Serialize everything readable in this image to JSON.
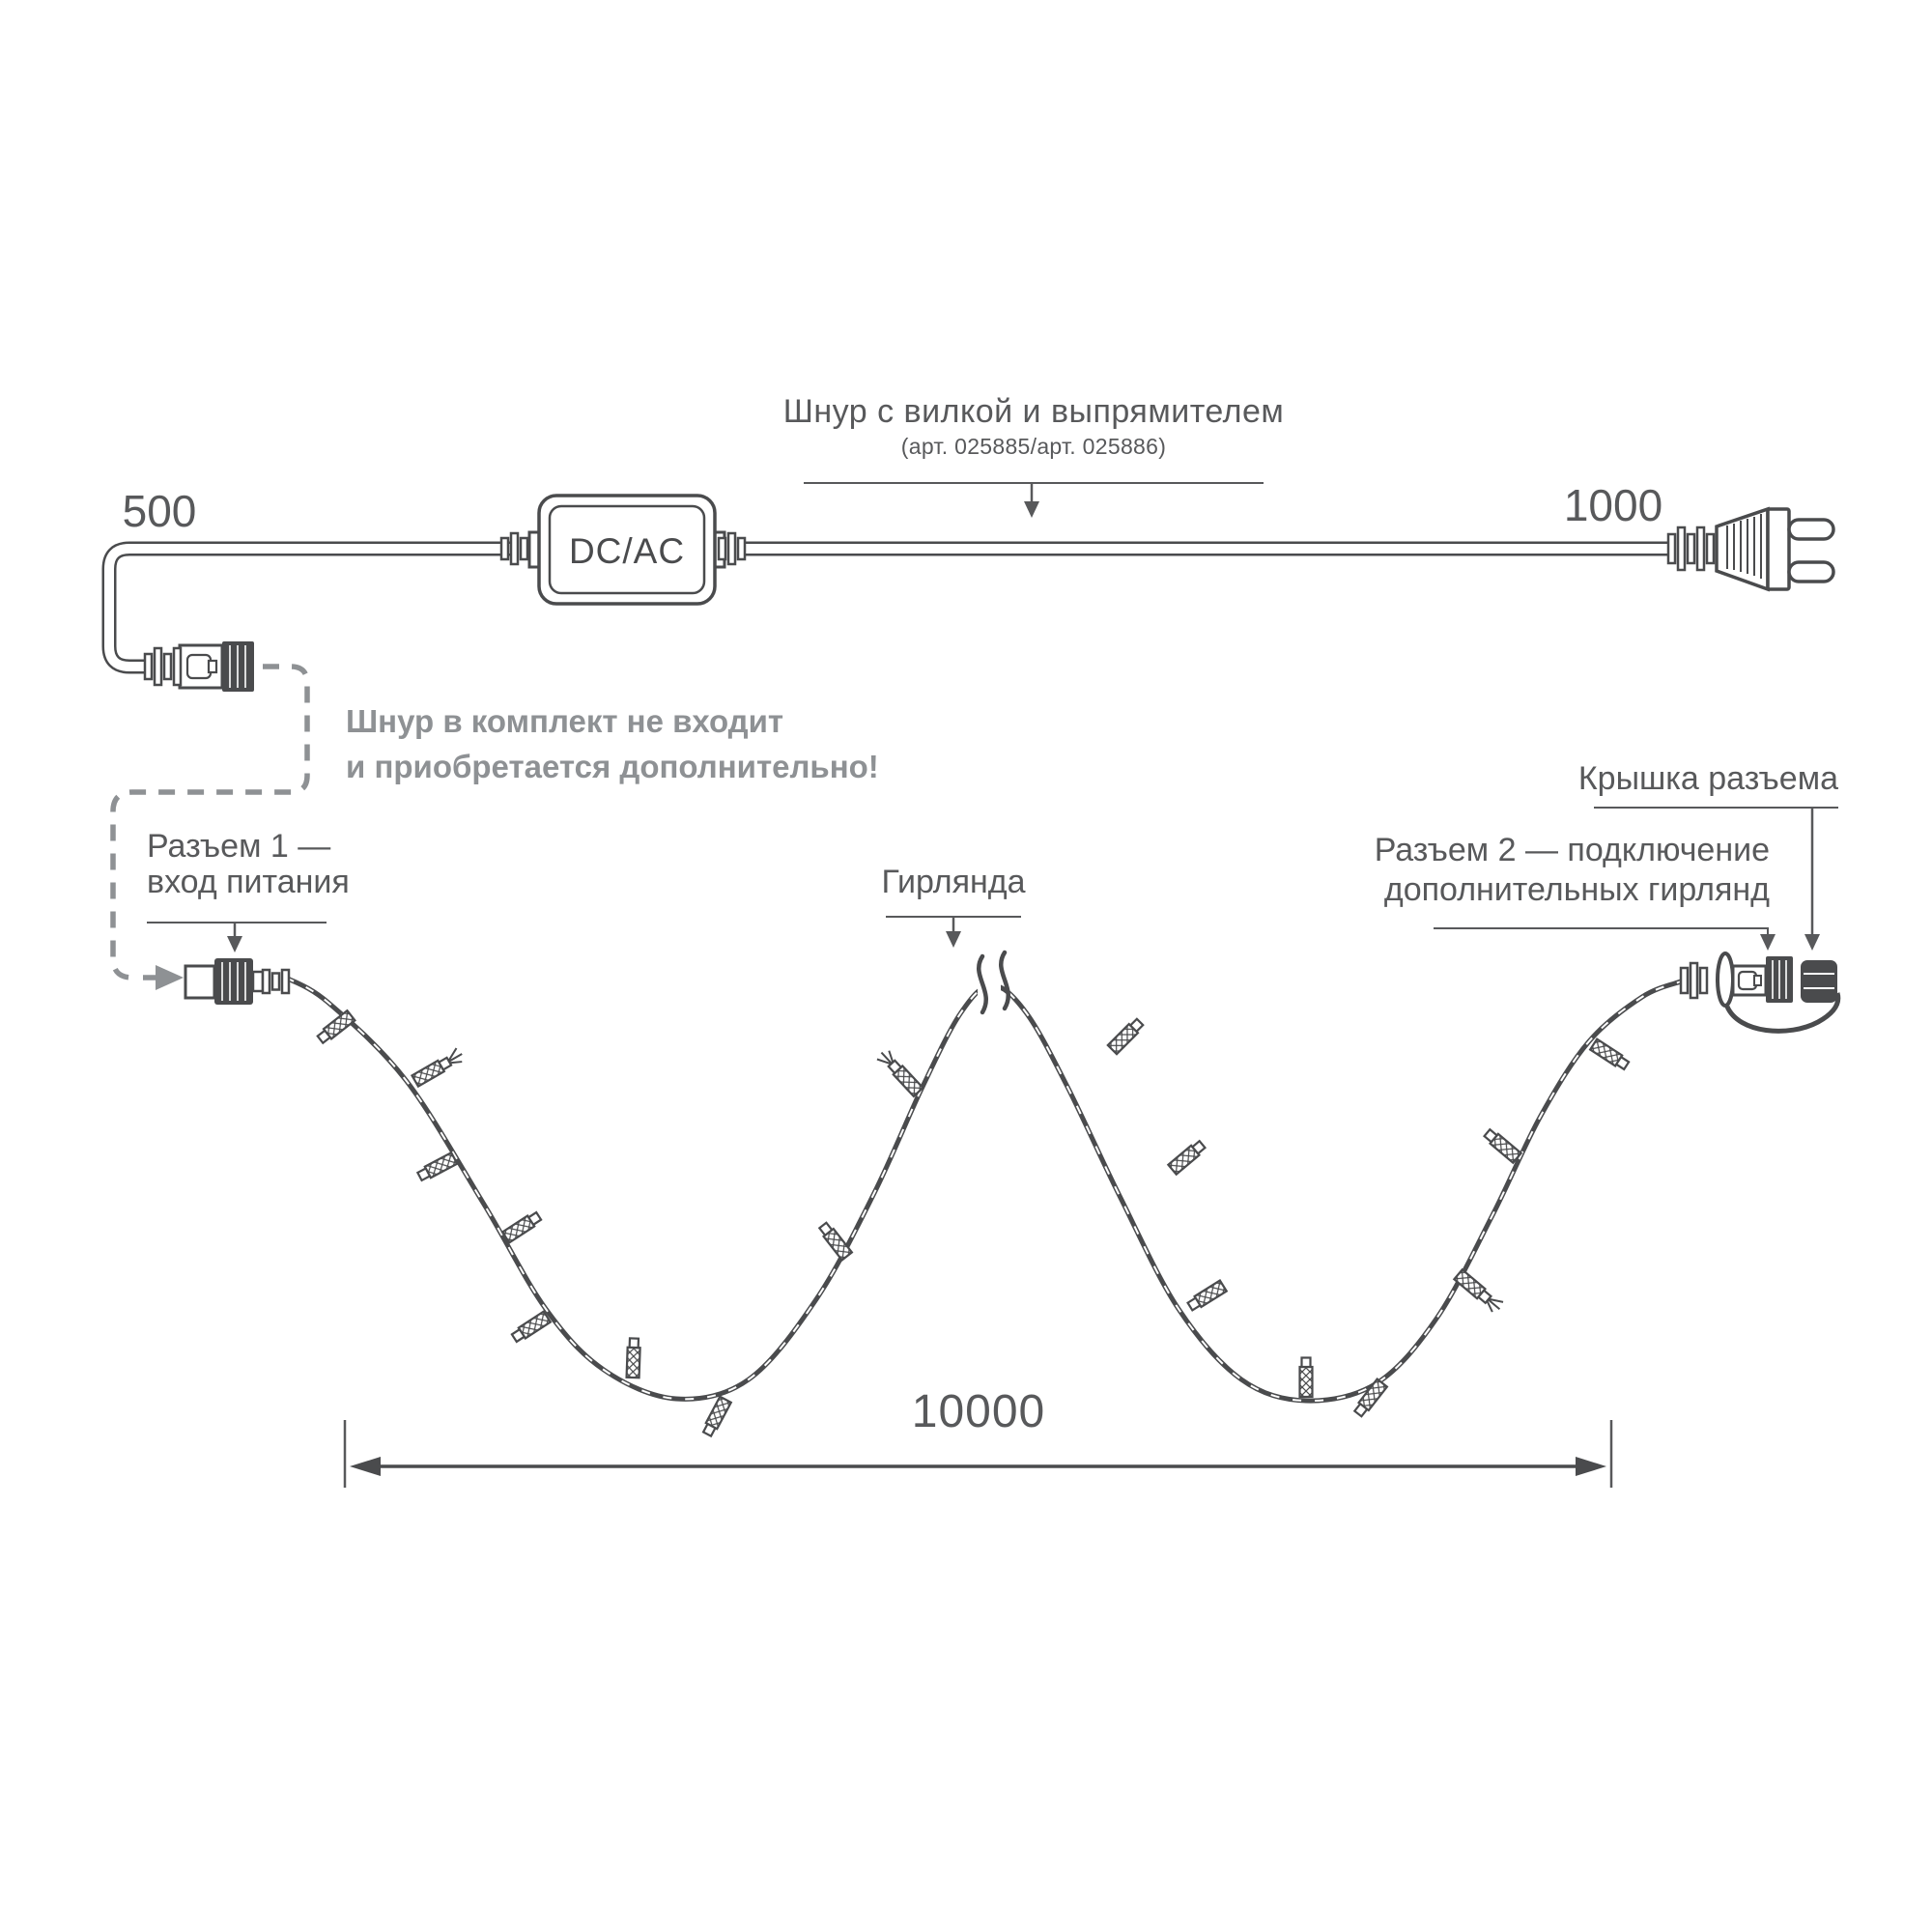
{
  "colors": {
    "ink": "#4a4b4d",
    "text": "#58595b",
    "muted": "#8e9194"
  },
  "top": {
    "title": "Шнур с вилкой и выпрямителем",
    "subtitle": "(арт. 025885/арт. 025886)",
    "left_cord_length": "500",
    "right_cord_length": "1000",
    "converter_label": "DC/AC"
  },
  "note": {
    "line1": "Шнур в комплект не входит",
    "line2": "и приобретается дополнительно!"
  },
  "labels": {
    "connector1_line1": "Разъем 1 —",
    "connector1_line2": "вход питания",
    "garland": "Гирлянда",
    "connector_cap": "Крышка разъема",
    "connector2_line1": "Разъем 2 — подключение",
    "connector2_line2": "дополнительных гирлянд",
    "total_length": "10000"
  }
}
